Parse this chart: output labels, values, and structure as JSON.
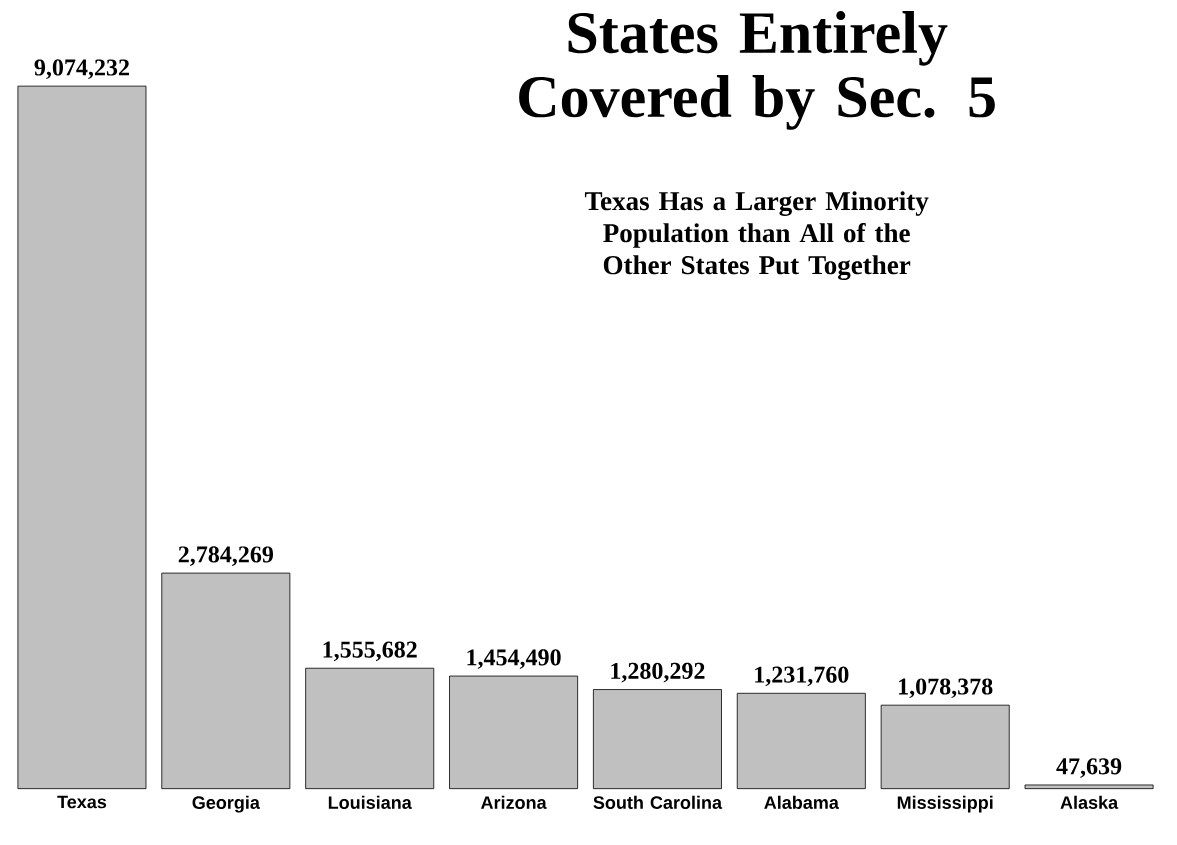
{
  "chart_data": {
    "type": "bar",
    "title": "States Entirely Covered by Sec. 5",
    "subtitle": "Texas Has a Larger Minority Population than All of the Other States Put Together",
    "categories": [
      "Texas",
      "Georgia",
      "Louisiana",
      "Arizona",
      "South Carolina",
      "Alabama",
      "Mississippi",
      "Alaska"
    ],
    "values": [
      9074232,
      2784269,
      1555682,
      1454490,
      1280292,
      1231760,
      1078378,
      47639
    ],
    "value_labels": [
      "9,074,232",
      "2,784,269",
      "1,555,682",
      "1,454,490",
      "1,280,292",
      "1,231,760",
      "1,078,378",
      "47,639"
    ],
    "color": "#c0c0c0"
  }
}
